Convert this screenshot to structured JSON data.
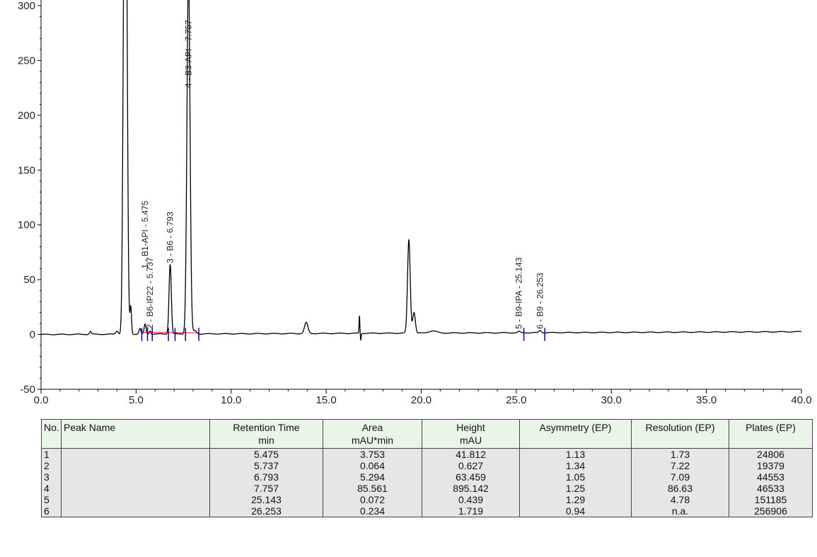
{
  "chart_data": {
    "type": "line",
    "title": "",
    "xlabel": "",
    "ylabel": "",
    "xlim": [
      0,
      40
    ],
    "ylim": [
      -50,
      300
    ],
    "x_ticks": [
      0,
      5,
      10,
      15,
      20,
      25,
      30,
      35,
      40
    ],
    "x_tick_labels": [
      "0.0",
      "5.0",
      "10.0",
      "15.0",
      "20.0",
      "25.0",
      "30.0",
      "35.0",
      "40.0"
    ],
    "y_ticks": [
      -50,
      0,
      50,
      100,
      150,
      200,
      250,
      300
    ],
    "y_tick_labels": [
      "-50",
      "0",
      "50",
      "100",
      "150",
      "200",
      "250",
      "300"
    ],
    "grid": false,
    "line_color": "#000000",
    "baseline_marker_color": "#ff0000",
    "peak_marker_color": "#0000cc",
    "baseline": {
      "start": 0,
      "end": 2.5
    },
    "features": [
      {
        "t": 2.6,
        "h": 2.5,
        "w": 0.05
      },
      {
        "t": 4.0,
        "h": 3,
        "w": 0.06
      },
      {
        "t": 4.38,
        "h": 330,
        "w": 0.07
      },
      {
        "t": 4.48,
        "h": 330,
        "w": 0.07
      },
      {
        "t": 4.72,
        "h": 25,
        "w": 0.04
      },
      {
        "t": 5.2,
        "h": 5,
        "w": 0.05
      },
      {
        "t": 5.475,
        "h": 9,
        "w": 0.05
      },
      {
        "t": 5.737,
        "h": 3,
        "w": 0.04
      },
      {
        "t": 6.793,
        "h": 63.5,
        "w": 0.06
      },
      {
        "t": 7.757,
        "h": 330,
        "w": 0.08
      },
      {
        "t": 8.1,
        "h": 3,
        "w": 0.08
      },
      {
        "t": 13.95,
        "h": 10,
        "w": 0.09
      },
      {
        "t": 16.75,
        "h": 16,
        "w": 0.02
      },
      {
        "t": 19.35,
        "h": 85,
        "w": 0.07
      },
      {
        "t": 19.62,
        "h": 19,
        "w": 0.07
      },
      {
        "t": 20.6,
        "h": 2,
        "w": 0.2
      },
      {
        "t": 25.143,
        "h": 1.2,
        "w": 0.06
      },
      {
        "t": 26.253,
        "h": 2,
        "w": 0.06
      }
    ],
    "dips": [
      {
        "t": 16.82,
        "h": -6,
        "w": 0.02
      }
    ],
    "peak_labels": [
      {
        "t": 5.475,
        "text": "1 - B1-API - 5.475",
        "base": 60
      },
      {
        "t": 5.737,
        "text": "2 - B6-IP22 - 5.737",
        "base": 5
      },
      {
        "t": 6.793,
        "text": "3 - B6 - 6.793",
        "base": 65
      },
      {
        "t": 7.757,
        "text": "4 - B3-API - 7.757",
        "base": 225
      },
      {
        "t": 25.143,
        "text": "5 - B9-IPA - 25.143",
        "base": 5
      },
      {
        "t": 26.253,
        "text": "6 - B9 - 26.253",
        "base": 5
      }
    ],
    "integration_marks": [
      5.3,
      5.6,
      5.85,
      6.7,
      7.05,
      7.6,
      8.3,
      25.4,
      26.5
    ]
  },
  "table": {
    "headers": [
      [
        "No.",
        ""
      ],
      [
        "Peak Name",
        ""
      ],
      [
        "Retention Time",
        "min"
      ],
      [
        "Area",
        "mAU*min"
      ],
      [
        "Height",
        "mAU"
      ],
      [
        "Asymmetry (EP)",
        ""
      ],
      [
        "Resolution (EP)",
        ""
      ],
      [
        "Plates (EP)",
        ""
      ]
    ],
    "rows": [
      [
        "1",
        "",
        "5.475",
        "3.753",
        "41.812",
        "1.13",
        "1.73",
        "24806"
      ],
      [
        "2",
        "",
        "5.737",
        "0.064",
        "0.627",
        "1.34",
        "7.22",
        "19379"
      ],
      [
        "3",
        "",
        "6.793",
        "5.294",
        "63.459",
        "1.05",
        "7.09",
        "44553"
      ],
      [
        "4",
        "",
        "7.757",
        "85.561",
        "895.142",
        "1.25",
        "86.63",
        "46533"
      ],
      [
        "5",
        "",
        "25.143",
        "0.072",
        "0.439",
        "1.29",
        "4.78",
        "151185"
      ],
      [
        "6",
        "",
        "26.253",
        "0.234",
        "1.719",
        "0.94",
        "n.a.",
        "256906"
      ]
    ]
  }
}
